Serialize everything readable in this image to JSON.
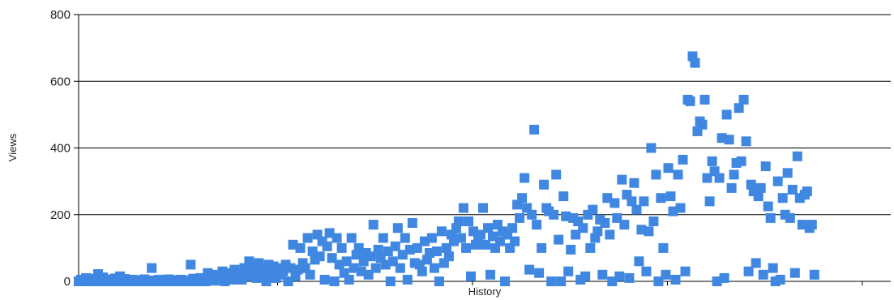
{
  "chart_data": {
    "type": "scatter",
    "xlabel": "History",
    "ylabel": "Views",
    "ylim": [
      0,
      800
    ],
    "yticks": [
      0,
      200,
      400,
      600,
      800
    ],
    "xlim": [
      0,
      1000
    ],
    "grid": "horizontal",
    "marker": "square",
    "colors": {
      "point": "#3f87e0",
      "grid": "#000000",
      "axis": "#000000"
    },
    "series": [
      {
        "points": [
          [
            0,
            0
          ],
          [
            3,
            5
          ],
          [
            6,
            0
          ],
          [
            9,
            10
          ],
          [
            12,
            2
          ],
          [
            15,
            0
          ],
          [
            18,
            8
          ],
          [
            21,
            3
          ],
          [
            24,
            22
          ],
          [
            27,
            0
          ],
          [
            30,
            12
          ],
          [
            33,
            5
          ],
          [
            36,
            0
          ],
          [
            39,
            6
          ],
          [
            42,
            0
          ],
          [
            45,
            9
          ],
          [
            48,
            3
          ],
          [
            51,
            15
          ],
          [
            54,
            0
          ],
          [
            57,
            7
          ],
          [
            60,
            2
          ],
          [
            63,
            0
          ],
          [
            66,
            5
          ],
          [
            69,
            2
          ],
          [
            72,
            0
          ],
          [
            75,
            4
          ],
          [
            78,
            1
          ],
          [
            81,
            6
          ],
          [
            84,
            0
          ],
          [
            87,
            3
          ],
          [
            90,
            40
          ],
          [
            93,
            2
          ],
          [
            96,
            0
          ],
          [
            99,
            5
          ],
          [
            102,
            1
          ],
          [
            105,
            0
          ],
          [
            108,
            3
          ],
          [
            111,
            6
          ],
          [
            114,
            0
          ],
          [
            117,
            4
          ],
          [
            120,
            2
          ],
          [
            123,
            0
          ],
          [
            126,
            5
          ],
          [
            129,
            3
          ],
          [
            132,
            0
          ],
          [
            135,
            2
          ],
          [
            138,
            50
          ],
          [
            141,
            8
          ],
          [
            144,
            0
          ],
          [
            147,
            3
          ],
          [
            150,
            10
          ],
          [
            153,
            5
          ],
          [
            156,
            0
          ],
          [
            159,
            25
          ],
          [
            162,
            5
          ],
          [
            165,
            20
          ],
          [
            168,
            2
          ],
          [
            171,
            8
          ],
          [
            174,
            15
          ],
          [
            177,
            30
          ],
          [
            180,
            0
          ],
          [
            183,
            10
          ],
          [
            186,
            25
          ],
          [
            189,
            5
          ],
          [
            192,
            35
          ],
          [
            195,
            12
          ],
          [
            198,
            20
          ],
          [
            201,
            5
          ],
          [
            204,
            40
          ],
          [
            207,
            15
          ],
          [
            210,
            60
          ],
          [
            213,
            25
          ],
          [
            216,
            45
          ],
          [
            219,
            10
          ],
          [
            222,
            55
          ],
          [
            225,
            20
          ],
          [
            228,
            35
          ],
          [
            231,
            0
          ],
          [
            234,
            50
          ],
          [
            237,
            25
          ],
          [
            240,
            45
          ],
          [
            243,
            10
          ],
          [
            246,
            40
          ],
          [
            249,
            20
          ],
          [
            252,
            30
          ],
          [
            255,
            50
          ],
          [
            258,
            0
          ],
          [
            261,
            40
          ],
          [
            264,
            110
          ],
          [
            267,
            15
          ],
          [
            270,
            35
          ],
          [
            273,
            100
          ],
          [
            276,
            55
          ],
          [
            279,
            40
          ],
          [
            282,
            130
          ],
          [
            285,
            20
          ],
          [
            288,
            90
          ],
          [
            291,
            65
          ],
          [
            294,
            140
          ],
          [
            297,
            75
          ],
          [
            300,
            120
          ],
          [
            303,
            5
          ],
          [
            306,
            105
          ],
          [
            309,
            145
          ],
          [
            312,
            70
          ],
          [
            315,
            0
          ],
          [
            318,
            130
          ],
          [
            321,
            50
          ],
          [
            324,
            100
          ],
          [
            327,
            25
          ],
          [
            330,
            60
          ],
          [
            333,
            5
          ],
          [
            336,
            130
          ],
          [
            339,
            40
          ],
          [
            342,
            80
          ],
          [
            345,
            100
          ],
          [
            348,
            30
          ],
          [
            351,
            60
          ],
          [
            354,
            85
          ],
          [
            357,
            20
          ],
          [
            360,
            75
          ],
          [
            363,
            170
          ],
          [
            366,
            40
          ],
          [
            369,
            95
          ],
          [
            372,
            70
          ],
          [
            375,
            130
          ],
          [
            378,
            50
          ],
          [
            381,
            90
          ],
          [
            384,
            0
          ],
          [
            387,
            60
          ],
          [
            390,
            105
          ],
          [
            393,
            160
          ],
          [
            396,
            40
          ],
          [
            399,
            80
          ],
          [
            402,
            130
          ],
          [
            405,
            5
          ],
          [
            408,
            95
          ],
          [
            411,
            175
          ],
          [
            414,
            55
          ],
          [
            417,
            100
          ],
          [
            420,
            50
          ],
          [
            423,
            30
          ],
          [
            426,
            120
          ],
          [
            429,
            65
          ],
          [
            432,
            85
          ],
          [
            435,
            130
          ],
          [
            438,
            40
          ],
          [
            441,
            90
          ],
          [
            444,
            0
          ],
          [
            447,
            150
          ],
          [
            450,
            55
          ],
          [
            453,
            100
          ],
          [
            456,
            75
          ],
          [
            459,
            140
          ],
          [
            462,
            120
          ],
          [
            465,
            160
          ],
          [
            468,
            180
          ],
          [
            471,
            130
          ],
          [
            474,
            220
          ],
          [
            477,
            100
          ],
          [
            480,
            180
          ],
          [
            483,
            15
          ],
          [
            486,
            150
          ],
          [
            489,
            110
          ],
          [
            492,
            130
          ],
          [
            495,
            140
          ],
          [
            498,
            220
          ],
          [
            501,
            110
          ],
          [
            504,
            160
          ],
          [
            507,
            20
          ],
          [
            510,
            135
          ],
          [
            513,
            100
          ],
          [
            516,
            170
          ],
          [
            519,
            120
          ],
          [
            522,
            150
          ],
          [
            525,
            0
          ],
          [
            528,
            140
          ],
          [
            531,
            100
          ],
          [
            534,
            160
          ],
          [
            537,
            120
          ],
          [
            540,
            230
          ],
          [
            543,
            190
          ],
          [
            546,
            250
          ],
          [
            549,
            310
          ],
          [
            552,
            220
          ],
          [
            555,
            35
          ],
          [
            558,
            200
          ],
          [
            561,
            455
          ],
          [
            564,
            170
          ],
          [
            567,
            25
          ],
          [
            570,
            100
          ],
          [
            573,
            290
          ],
          [
            576,
            220
          ],
          [
            579,
            210
          ],
          [
            582,
            0
          ],
          [
            585,
            200
          ],
          [
            588,
            320
          ],
          [
            591,
            125
          ],
          [
            594,
            0
          ],
          [
            597,
            255
          ],
          [
            600,
            195
          ],
          [
            603,
            30
          ],
          [
            606,
            95
          ],
          [
            609,
            190
          ],
          [
            612,
            140
          ],
          [
            615,
            180
          ],
          [
            618,
            5
          ],
          [
            621,
            160
          ],
          [
            624,
            15
          ],
          [
            627,
            200
          ],
          [
            630,
            100
          ],
          [
            633,
            215
          ],
          [
            636,
            130
          ],
          [
            639,
            150
          ],
          [
            642,
            185
          ],
          [
            645,
            20
          ],
          [
            648,
            175
          ],
          [
            651,
            250
          ],
          [
            654,
            140
          ],
          [
            657,
            0
          ],
          [
            660,
            235
          ],
          [
            663,
            190
          ],
          [
            666,
            15
          ],
          [
            669,
            305
          ],
          [
            672,
            170
          ],
          [
            675,
            260
          ],
          [
            678,
            10
          ],
          [
            681,
            240
          ],
          [
            684,
            295
          ],
          [
            687,
            215
          ],
          [
            690,
            60
          ],
          [
            693,
            155
          ],
          [
            696,
            240
          ],
          [
            699,
            30
          ],
          [
            702,
            150
          ],
          [
            705,
            400
          ],
          [
            708,
            180
          ],
          [
            711,
            320
          ],
          [
            714,
            0
          ],
          [
            717,
            250
          ],
          [
            720,
            100
          ],
          [
            723,
            20
          ],
          [
            726,
            340
          ],
          [
            729,
            255
          ],
          [
            732,
            210
          ],
          [
            735,
            5
          ],
          [
            738,
            320
          ],
          [
            741,
            220
          ],
          [
            744,
            365
          ],
          [
            747,
            30
          ],
          [
            750,
            545
          ],
          [
            753,
            540
          ],
          [
            756,
            675
          ],
          [
            759,
            655
          ],
          [
            762,
            450
          ],
          [
            765,
            480
          ],
          [
            768,
            470
          ],
          [
            771,
            545
          ],
          [
            774,
            310
          ],
          [
            777,
            240
          ],
          [
            780,
            360
          ],
          [
            783,
            330
          ],
          [
            786,
            0
          ],
          [
            789,
            310
          ],
          [
            792,
            430
          ],
          [
            795,
            10
          ],
          [
            798,
            500
          ],
          [
            801,
            425
          ],
          [
            804,
            280
          ],
          [
            807,
            320
          ],
          [
            810,
            355
          ],
          [
            813,
            520
          ],
          [
            816,
            360
          ],
          [
            819,
            545
          ],
          [
            822,
            420
          ],
          [
            825,
            30
          ],
          [
            828,
            290
          ],
          [
            831,
            270
          ],
          [
            834,
            55
          ],
          [
            837,
            255
          ],
          [
            840,
            280
          ],
          [
            843,
            20
          ],
          [
            846,
            345
          ],
          [
            849,
            225
          ],
          [
            852,
            190
          ],
          [
            855,
            40
          ],
          [
            858,
            0
          ],
          [
            861,
            300
          ],
          [
            864,
            5
          ],
          [
            867,
            250
          ],
          [
            870,
            200
          ],
          [
            873,
            325
          ],
          [
            876,
            190
          ],
          [
            879,
            275
          ],
          [
            882,
            25
          ],
          [
            885,
            375
          ],
          [
            888,
            250
          ],
          [
            891,
            170
          ],
          [
            894,
            260
          ],
          [
            897,
            270
          ],
          [
            900,
            160
          ],
          [
            903,
            170
          ],
          [
            906,
            20
          ]
        ]
      }
    ]
  }
}
